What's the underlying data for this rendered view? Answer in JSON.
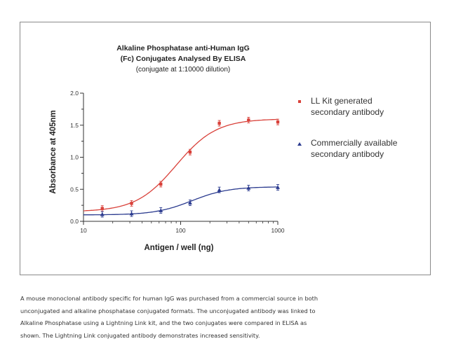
{
  "chart_data": {
    "type": "scatter",
    "title_lines": [
      "Alkaline Phosphatase anti-Human IgG",
      "(Fc) Conjugates Analysed By ELISA"
    ],
    "subtitle": "(conjugate at 1:10000 dilution)",
    "xlabel": "Antigen / well (ng)",
    "ylabel": "Absorbance at 405nm",
    "xscale": "log",
    "xlim": [
      10,
      1000
    ],
    "ylim": [
      0,
      2.0
    ],
    "x_ticks": [
      10,
      100,
      1000
    ],
    "x_tick_labels": [
      "10",
      "100",
      "1000"
    ],
    "y_ticks": [
      0,
      0.5,
      1.0,
      1.5,
      2.0
    ],
    "y_tick_labels": [
      "0.0",
      "0.5",
      "1.0",
      "1.5",
      "2.0"
    ],
    "grid": false,
    "legend_position": "right",
    "series": [
      {
        "name_lines": [
          "LL Kit generated",
          "secondary antibody"
        ],
        "color": "#d9413a",
        "marker": "square",
        "x": [
          15.6,
          31.25,
          62.5,
          125,
          250,
          500,
          1000
        ],
        "y": [
          0.2,
          0.28,
          0.58,
          1.08,
          1.53,
          1.58,
          1.55
        ],
        "fit_curve": {
          "bottom": 0.15,
          "top": 1.6,
          "ec50": 90,
          "hill": 2.1
        }
      },
      {
        "name_lines": [
          "Commercially available",
          "secondary antibody"
        ],
        "color": "#2b3b8f",
        "marker": "triangle",
        "x": [
          15.6,
          31.25,
          62.5,
          125,
          250,
          500,
          1000
        ],
        "y": [
          0.11,
          0.12,
          0.17,
          0.29,
          0.49,
          0.52,
          0.53
        ],
        "fit_curve": {
          "bottom": 0.1,
          "top": 0.54,
          "ec50": 130,
          "hill": 2.3
        }
      }
    ]
  },
  "caption_lines": [
    "A mouse monoclonal antibody specific for human IgG was purchased from a commercial source in both",
    "unconjugated and alkaline phosphatase conjugated formats.  The unconjugated antibody was linked to",
    "Alkaline Phosphatase using a Lightning Link kit, and the two conjugates were compared in ELISA as",
    "shown. The Lightning Link conjugated antibody demonstrates increased sensitivity."
  ]
}
